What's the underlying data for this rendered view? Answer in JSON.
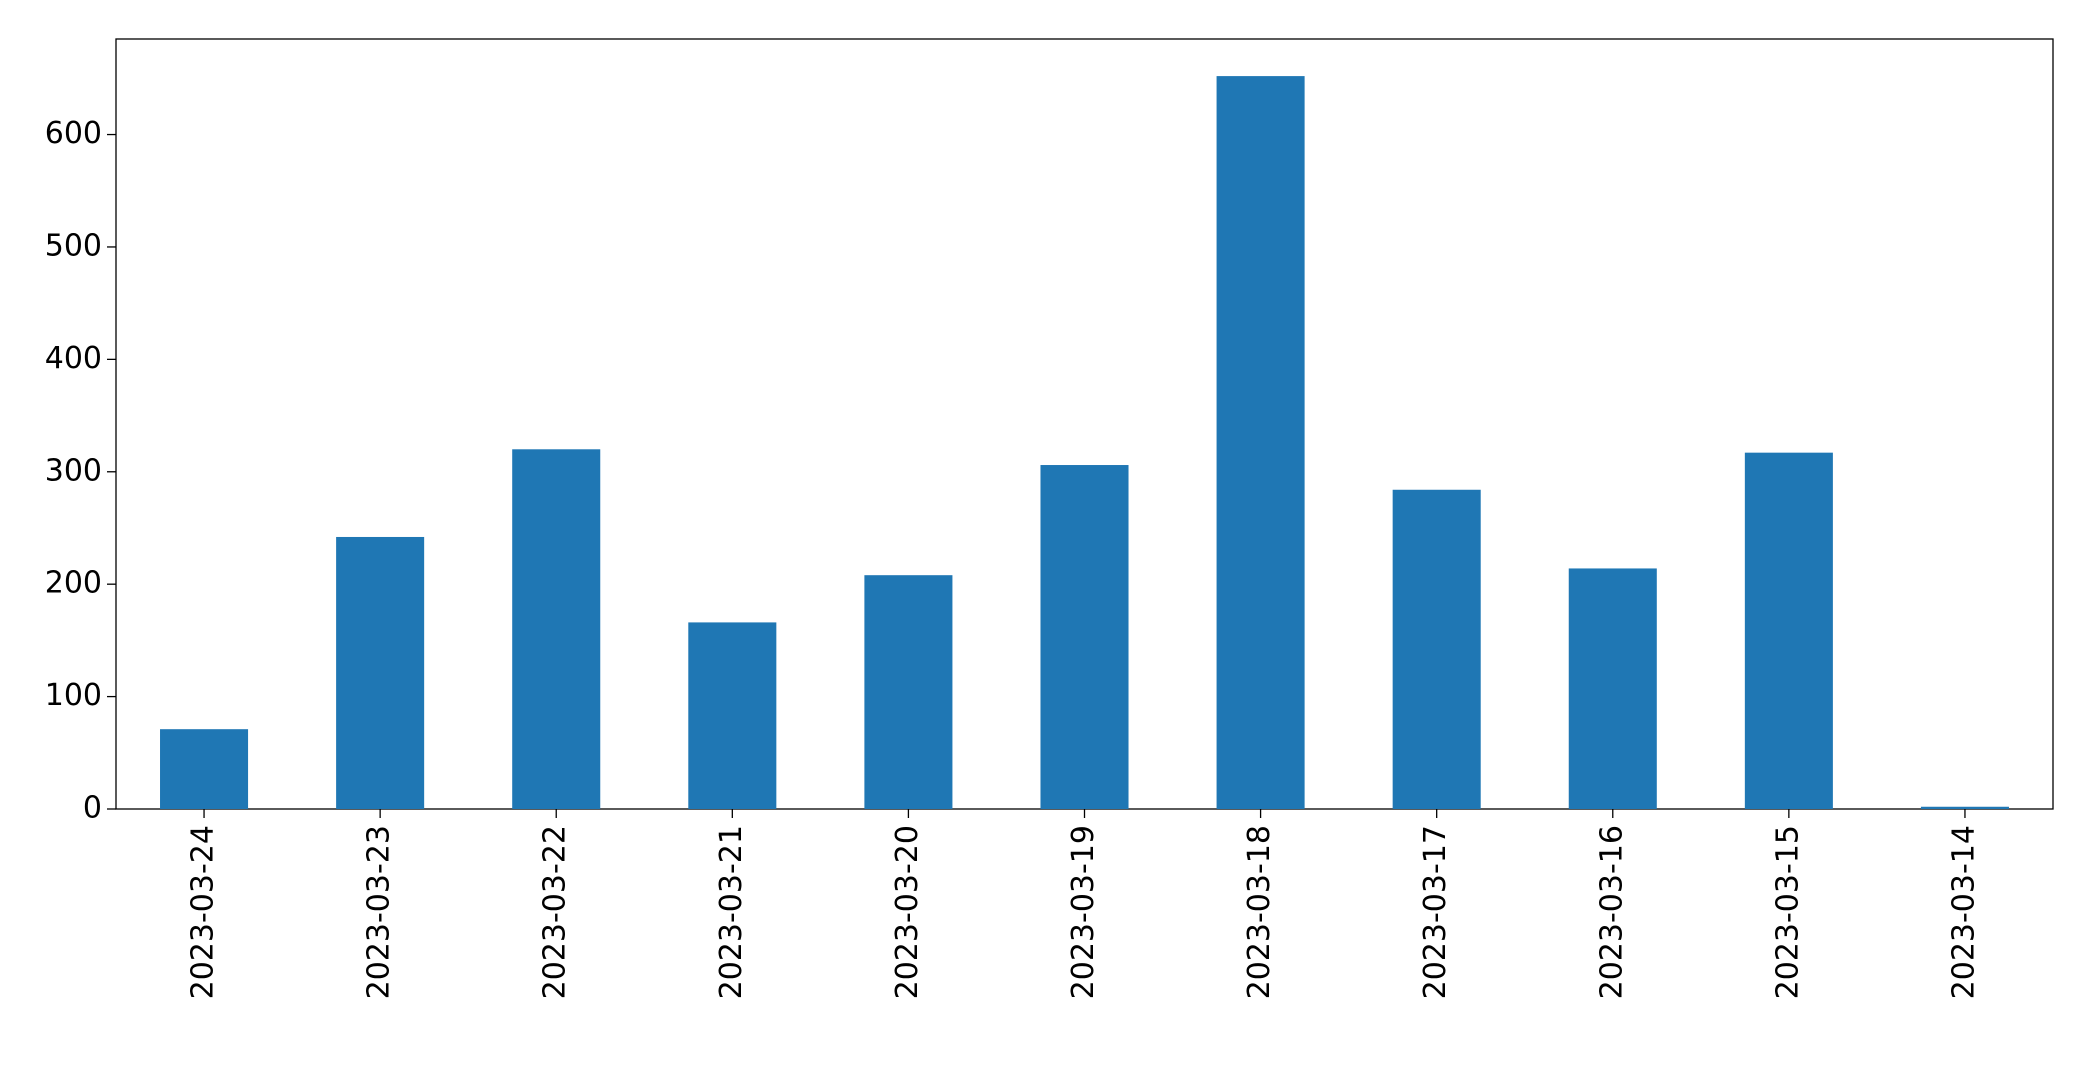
{
  "chart_data": {
    "type": "bar",
    "categories": [
      "2023-03-24",
      "2023-03-23",
      "2023-03-22",
      "2023-03-21",
      "2023-03-20",
      "2023-03-19",
      "2023-03-18",
      "2023-03-17",
      "2023-03-16",
      "2023-03-15",
      "2023-03-14"
    ],
    "values": [
      71,
      242,
      320,
      166,
      208,
      306,
      652,
      284,
      214,
      317,
      2
    ],
    "color": "#1f77b4",
    "ylim": [
      0,
      685
    ],
    "yticks": [
      0,
      100,
      200,
      300,
      400,
      500,
      600
    ],
    "grid": false
  }
}
